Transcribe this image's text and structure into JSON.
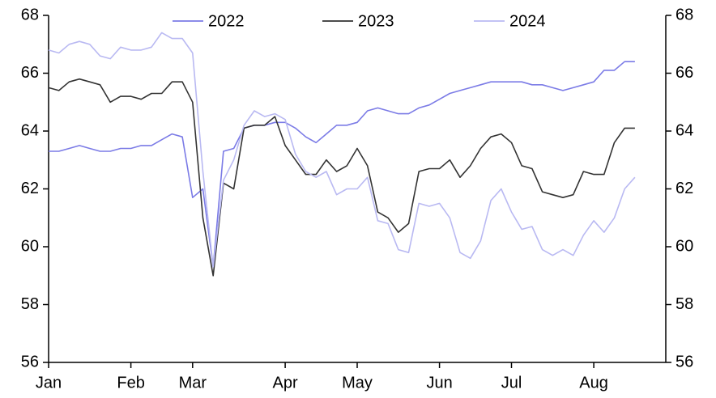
{
  "chart_data": {
    "type": "line",
    "categories": [
      "Jan",
      null,
      null,
      null,
      null,
      null,
      null,
      null,
      "Feb",
      null,
      null,
      null,
      null,
      null,
      "Mar",
      null,
      null,
      null,
      null,
      null,
      null,
      null,
      null,
      "Apr",
      null,
      null,
      null,
      null,
      null,
      null,
      "May",
      null,
      null,
      null,
      null,
      null,
      null,
      null,
      "Jun",
      null,
      null,
      null,
      null,
      null,
      null,
      "Jul",
      null,
      null,
      null,
      null,
      null,
      null,
      null,
      "Aug",
      null,
      null,
      null,
      null
    ],
    "series": [
      {
        "name": "2022",
        "color": "#7b7be6",
        "values": [
          63.3,
          63.3,
          63.4,
          63.5,
          63.4,
          63.3,
          63.3,
          63.4,
          63.4,
          63.5,
          63.5,
          63.7,
          63.9,
          63.8,
          61.7,
          62.0,
          59.3,
          63.3,
          63.4,
          64.1,
          64.2,
          64.2,
          64.3,
          64.3,
          64.1,
          63.8,
          63.6,
          63.9,
          64.2,
          64.2,
          64.3,
          64.7,
          64.8,
          64.7,
          64.6,
          64.6,
          64.8,
          64.9,
          65.1,
          65.3,
          65.4,
          65.5,
          65.6,
          65.7,
          65.7,
          65.7,
          65.7,
          65.6,
          65.6,
          65.5,
          65.4,
          65.5,
          65.6,
          65.7,
          66.1,
          66.1,
          66.4,
          66.4
        ]
      },
      {
        "name": "2023",
        "color": "#333333",
        "values": [
          65.5,
          65.4,
          65.7,
          65.8,
          65.7,
          65.6,
          65.0,
          65.2,
          65.2,
          65.1,
          65.3,
          65.3,
          65.7,
          65.7,
          65.0,
          61.0,
          59.0,
          62.2,
          62.0,
          64.1,
          64.2,
          64.2,
          64.5,
          63.5,
          63.0,
          62.5,
          62.5,
          63.0,
          62.6,
          62.8,
          63.4,
          62.8,
          61.2,
          61.0,
          60.5,
          60.8,
          62.6,
          62.7,
          62.7,
          63.0,
          62.4,
          62.8,
          63.4,
          63.8,
          63.9,
          63.6,
          62.8,
          62.7,
          61.9,
          61.8,
          61.7,
          61.8,
          62.6,
          62.5,
          62.5,
          63.6,
          64.1,
          64.1
        ]
      },
      {
        "name": "2024",
        "color": "#b9b9f2",
        "values": [
          66.8,
          66.7,
          67.0,
          67.1,
          67.0,
          66.6,
          66.5,
          66.9,
          66.8,
          66.8,
          66.9,
          67.4,
          67.2,
          67.2,
          66.7,
          62.6,
          59.3,
          62.3,
          63.0,
          64.2,
          64.7,
          64.5,
          64.6,
          64.4,
          63.2,
          62.6,
          62.4,
          62.6,
          61.8,
          62.0,
          62.0,
          62.4,
          60.9,
          60.8,
          59.9,
          59.8,
          61.5,
          61.4,
          61.5,
          61.0,
          59.8,
          59.6,
          60.2,
          61.6,
          62.0,
          61.2,
          60.6,
          60.7,
          59.9,
          59.7,
          59.9,
          59.7,
          60.4,
          60.9,
          60.5,
          61.0,
          62.0,
          62.4
        ]
      }
    ],
    "ylim": [
      56,
      68
    ],
    "yticks": [
      56,
      58,
      60,
      62,
      64,
      66,
      68
    ],
    "y2lim": [
      56,
      68
    ],
    "y2ticks": [
      56,
      58,
      60,
      62,
      64,
      66,
      68
    ],
    "grid": false,
    "legend": "top"
  }
}
